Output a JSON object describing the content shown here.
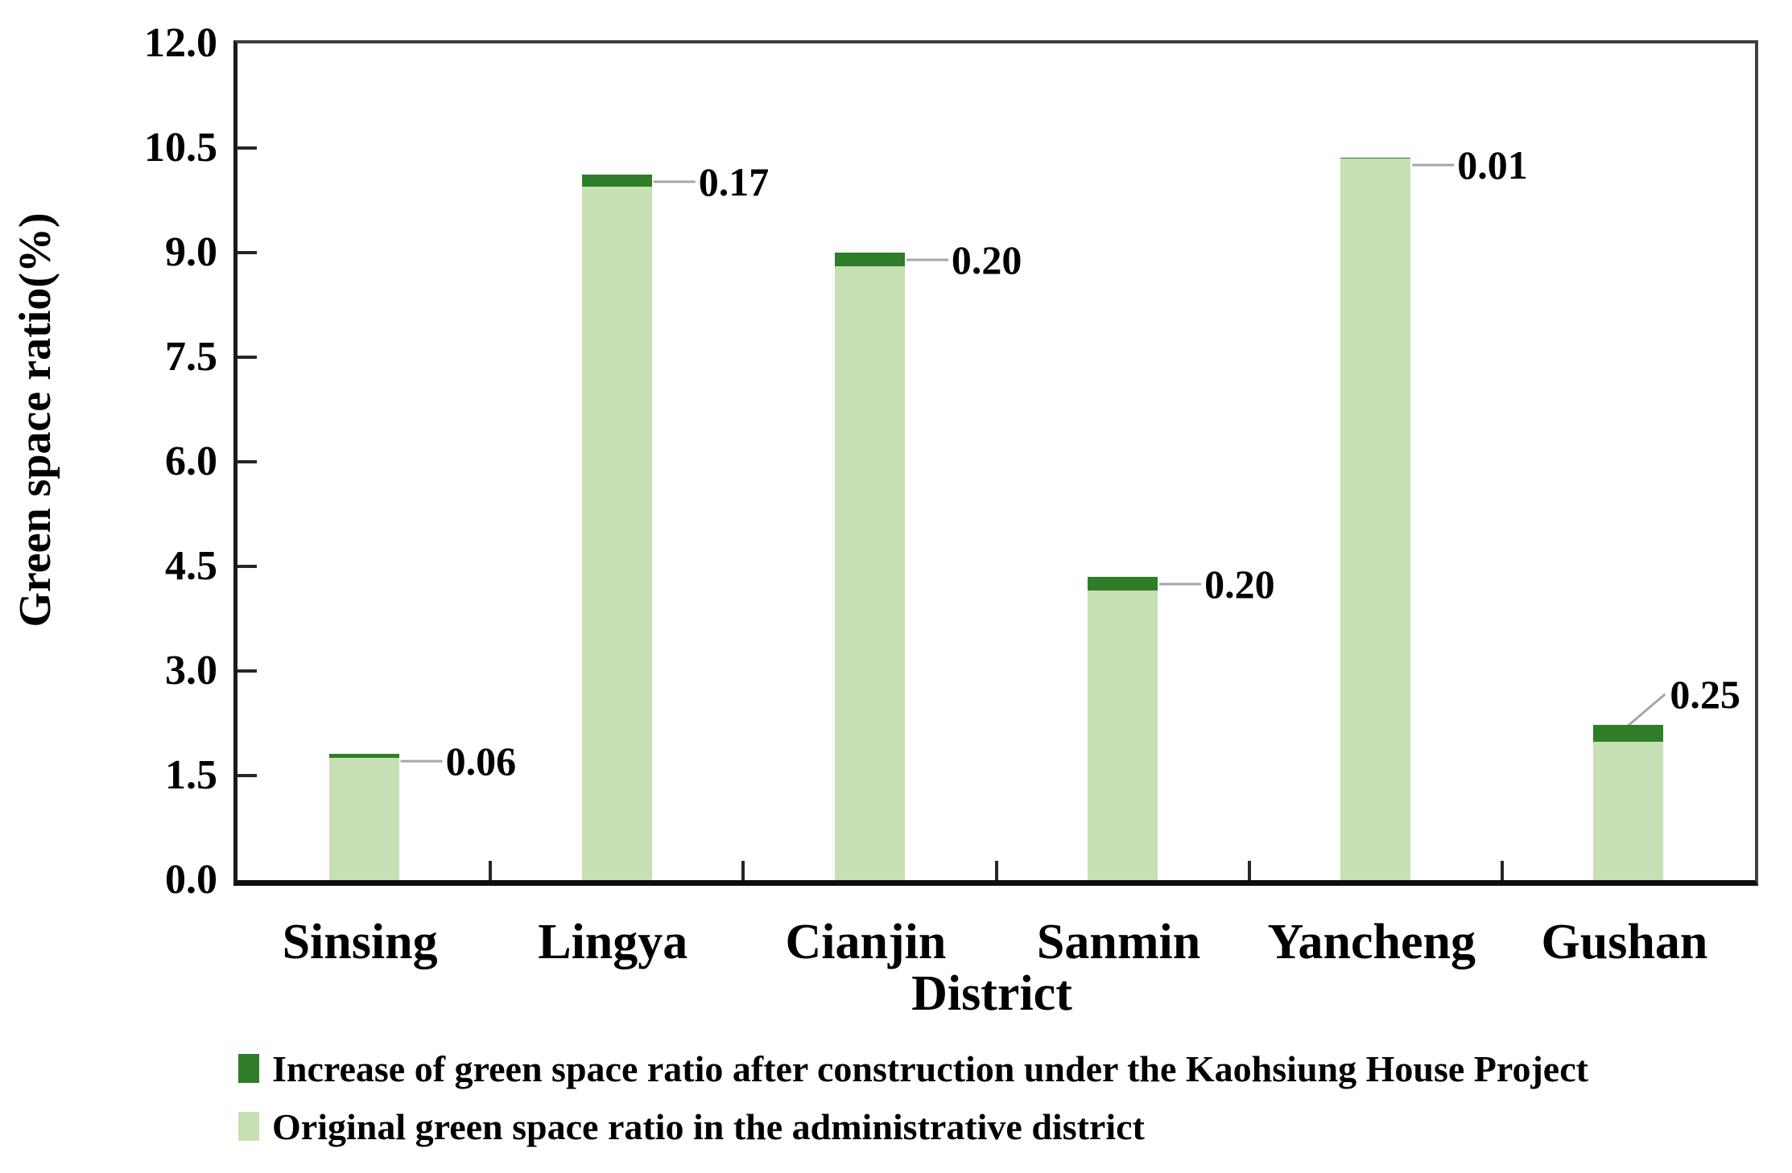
{
  "chart_data": {
    "type": "bar",
    "stacked": true,
    "title": "",
    "xlabel": "District",
    "ylabel": "Green space ratio(%)",
    "ylim": [
      0,
      12
    ],
    "ytick_step": 1.5,
    "grid": false,
    "legend_position": "bottom-left",
    "categories": [
      "Sinsing",
      "Lingya",
      "Cianjin",
      "Sanmin",
      "Yancheng",
      "Gushan"
    ],
    "series": [
      {
        "name": "Increase of green space ratio after construction under the Kaohsiung House Project",
        "color": "#2f7d29",
        "values": [
          0.06,
          0.17,
          0.2,
          0.2,
          0.01,
          0.25
        ]
      },
      {
        "name": "Original green space ratio in the administrative district",
        "color": "#c6e0b4",
        "values": [
          1.75,
          9.95,
          8.8,
          4.15,
          10.35,
          1.98
        ]
      }
    ],
    "point_labels": [
      "0.06",
      "0.17",
      "0.20",
      "0.20",
      "0.01",
      "0.25"
    ],
    "annotations": [
      {
        "label": "0.06",
        "leader": "horizontal"
      },
      {
        "label": "0.17",
        "leader": "horizontal"
      },
      {
        "label": "0.20",
        "leader": "horizontal"
      },
      {
        "label": "0.20",
        "leader": "horizontal"
      },
      {
        "label": "0.01",
        "leader": "horizontal"
      },
      {
        "label": "0.25",
        "leader": "diagonal-up"
      }
    ],
    "leader_line_color": "#a6a6a6",
    "axis_color": "#1a1a1a"
  }
}
